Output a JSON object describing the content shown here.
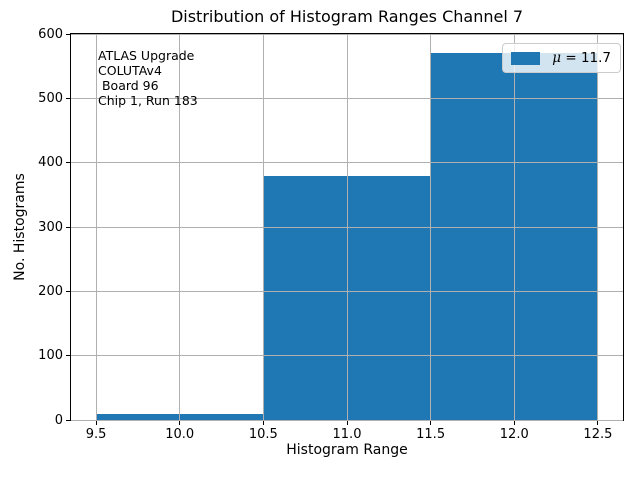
{
  "chart_data": {
    "type": "bar",
    "title": "Distribution of Histogram Ranges Channel 7",
    "xlabel": "Histogram Range",
    "ylabel": "No. Histograms",
    "bin_edges": [
      9.5,
      10.5,
      11.5,
      12.5
    ],
    "values": [
      9,
      380,
      571
    ],
    "bar_color": "#1f77b4",
    "grid": true,
    "grid_color": "#b0b0b0",
    "spine_color": "#000000",
    "xlim": [
      9.35,
      12.65
    ],
    "ylim": [
      0,
      600
    ],
    "xticks": [
      9.5,
      10.0,
      10.5,
      11.0,
      11.5,
      12.0,
      12.5
    ],
    "xtick_labels": [
      "9.5",
      "10.0",
      "10.5",
      "11.0",
      "11.5",
      "12.0",
      "12.5"
    ],
    "yticks": [
      0,
      100,
      200,
      300,
      400,
      500,
      600
    ],
    "ytick_labels": [
      "0",
      "100",
      "200",
      "300",
      "400",
      "500",
      "600"
    ],
    "legend": {
      "label": "μ = 11.7",
      "symbol": "μ",
      "rest": " = 11.7",
      "position": "upper right"
    },
    "annotation_lines": [
      "ATLAS Upgrade",
      "COLUTAv4",
      " Board 96",
      "Chip 1, Run 183"
    ]
  }
}
